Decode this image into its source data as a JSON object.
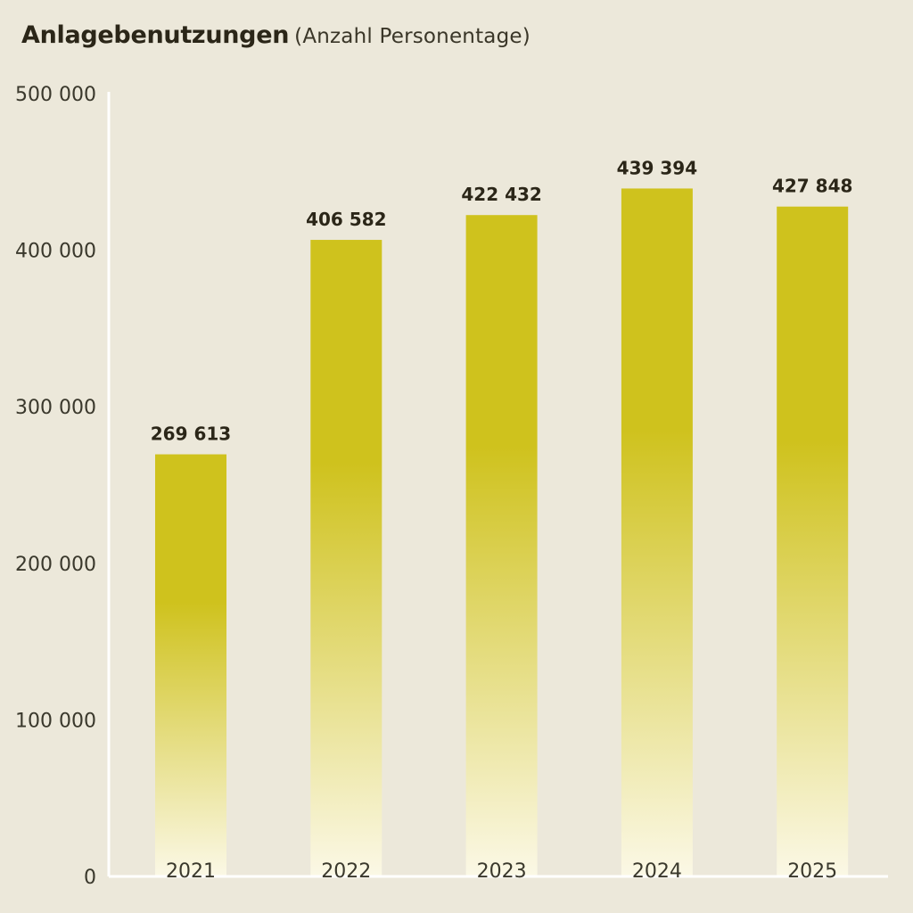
{
  "title": "Anlagebenutzungen",
  "subtitle": "(Anzahl Personentage)",
  "colors": {
    "background": "#ece8da",
    "bar_top": "#cfc21d",
    "bar_bottom": "#fbf8e6",
    "axis": "#ffffff"
  },
  "chart_data": {
    "type": "bar",
    "title": "Anlagebenutzungen",
    "subtitle": "(Anzahl Personentage)",
    "categories": [
      "2021",
      "2022",
      "2023",
      "2024",
      "2025"
    ],
    "values": [
      269613,
      406582,
      422432,
      439394,
      427848
    ],
    "value_labels": [
      "269 613",
      "406 582",
      "422 432",
      "439 394",
      "427 848"
    ],
    "ylim": [
      0,
      500000
    ],
    "yticks": [
      0,
      100000,
      200000,
      300000,
      400000,
      500000
    ],
    "ytick_labels": [
      "0",
      "100 000",
      "200 000",
      "300 000",
      "400 000",
      "500 000"
    ],
    "xlabel": "",
    "ylabel": "",
    "grid": false,
    "legend": "none"
  }
}
